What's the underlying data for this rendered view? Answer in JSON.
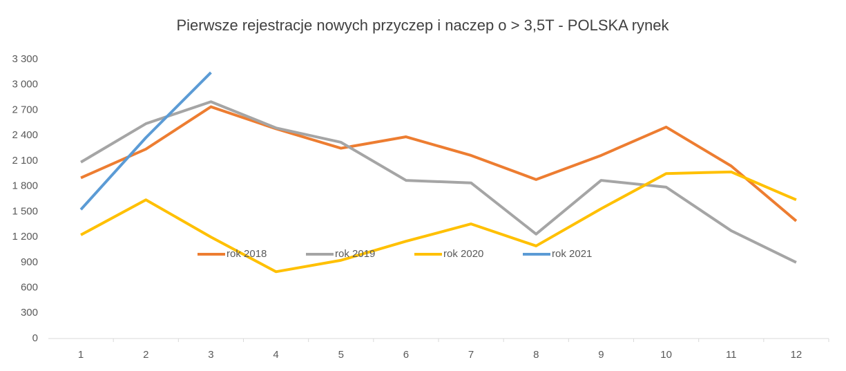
{
  "chart_data": {
    "type": "line",
    "title": "Pierwsze rejestracje nowych przyczep i naczep o > 3,5T - POLSKA rynek",
    "categories": [
      "1",
      "2",
      "3",
      "4",
      "5",
      "6",
      "7",
      "8",
      "9",
      "10",
      "11",
      "12"
    ],
    "series": [
      {
        "name": "rok 2018",
        "color": "#ED7D31",
        "values": [
          1900,
          2240,
          2740,
          2480,
          2250,
          2385,
          2165,
          1880,
          2165,
          2500,
          2040,
          1390
        ]
      },
      {
        "name": "rok 2019",
        "color": "#A5A5A5",
        "values": [
          2085,
          2540,
          2800,
          2490,
          2320,
          1870,
          1840,
          1235,
          1870,
          1790,
          1275,
          900
        ]
      },
      {
        "name": "rok 2020",
        "color": "#FFC000",
        "values": [
          1225,
          1640,
          1200,
          790,
          925,
          1150,
          1355,
          1095,
          1535,
          1950,
          1970,
          1640
        ]
      },
      {
        "name": "rok 2021",
        "color": "#5B9BD5",
        "values": [
          1525,
          2375,
          3145,
          null,
          null,
          null,
          null,
          null,
          null,
          null,
          null,
          null
        ]
      }
    ],
    "ylim": [
      0,
      3300
    ],
    "yticks": [
      0,
      300,
      600,
      900,
      {
        "value": 1200,
        "label": "1 200"
      },
      {
        "value": 1500,
        "label": "1 500"
      },
      {
        "value": 1800,
        "label": "1 800"
      },
      {
        "value": 2100,
        "label": "2 100"
      },
      {
        "value": 2400,
        "label": "2 400"
      },
      {
        "value": 2700,
        "label": "2 700"
      },
      {
        "value": 3000,
        "label": "3 000"
      },
      {
        "value": 3300,
        "label": "3 300"
      }
    ],
    "grid": false,
    "legend": "center"
  }
}
